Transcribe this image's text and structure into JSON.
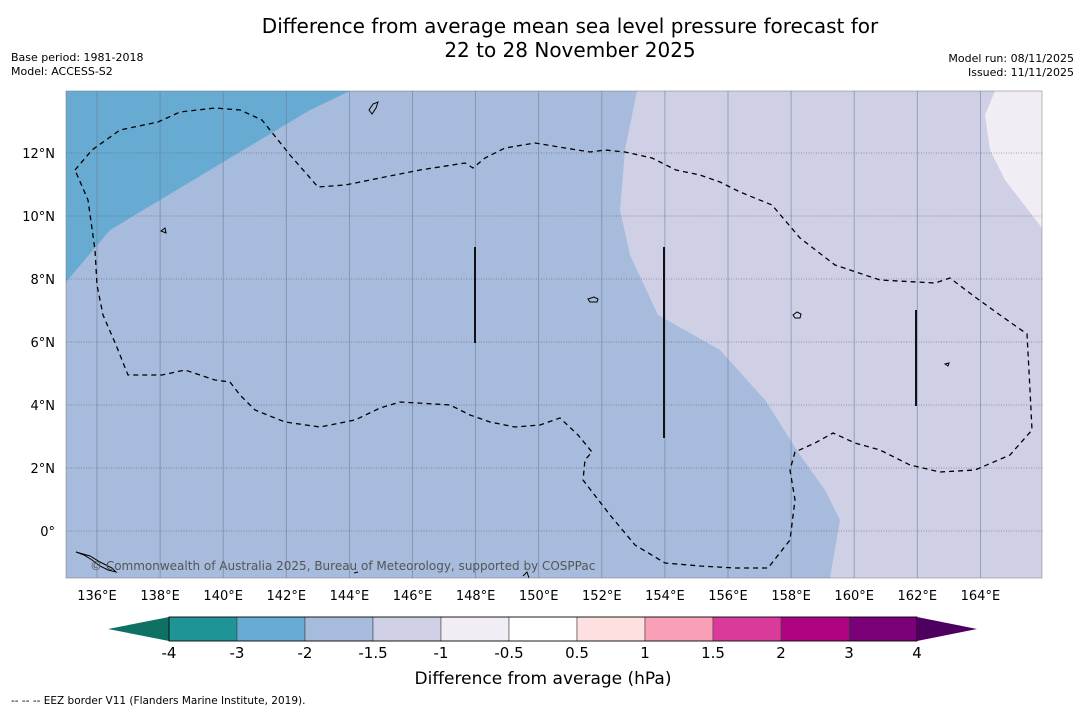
{
  "title": {
    "line1": "Difference from average mean sea level pressure forecast for",
    "line2": "22 to 28 November 2025"
  },
  "meta_left": {
    "base_period": "Base period: 1981-2018",
    "model": "Model: ACCESS-S2"
  },
  "meta_right": {
    "model_run": "Model run: 08/11/2025",
    "issued": "Issued: 11/11/2025"
  },
  "map": {
    "lon_ticks": [
      "136°E",
      "138°E",
      "140°E",
      "142°E",
      "144°E",
      "146°E",
      "148°E",
      "150°E",
      "152°E",
      "154°E",
      "156°E",
      "158°E",
      "160°E",
      "162°E",
      "164°E"
    ],
    "lat_ticks": [
      "12°N",
      "10°N",
      "8°N",
      "6°N",
      "4°N",
      "2°N",
      "0°"
    ],
    "credit": "© Commonwealth of Australia 2025, Bureau of Meteorology, supported by COSPPac",
    "fill_colors": {
      "-3": "#67abd2",
      "-2": "#a7bbdc",
      "-1.5": "#cfd0e6",
      "-1": "#f2edf4"
    }
  },
  "colorbar": {
    "label": "Difference from average (hPa)",
    "ticks": [
      "-4",
      "-3",
      "-2",
      "-1.5",
      "-1",
      "-0.5",
      "0.5",
      "1",
      "1.5",
      "2",
      "3",
      "4"
    ],
    "colors": [
      "#1e9496",
      "#67abd2",
      "#a7bbdc",
      "#cfd0e6",
      "#f2edf4",
      "#ffffff",
      "#fee0e0",
      "#f9a0b8",
      "#da3b9a",
      "#ae0482",
      "#7a0177"
    ],
    "under_color": "#0d7164",
    "over_color": "#4d0060"
  },
  "footnote": "--  --  -- EEZ border V11 (Flanders Marine Institute, 2019)."
}
